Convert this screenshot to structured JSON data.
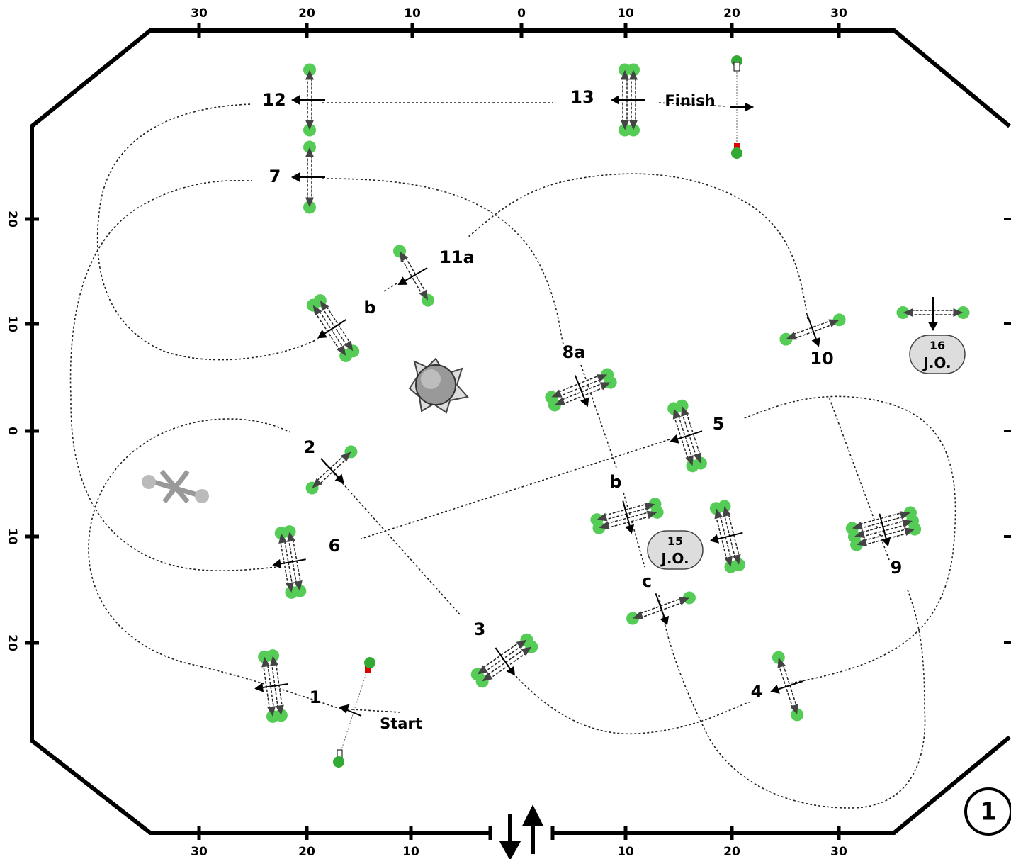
{
  "ruler": {
    "top": [
      "30",
      "20",
      "10",
      "0",
      "10",
      "20",
      "30"
    ],
    "bottom": [
      "30",
      "20",
      "10",
      "10",
      "20",
      "30"
    ],
    "left": [
      "20",
      "10",
      "0",
      "10",
      "20"
    ]
  },
  "labels": [
    "12",
    "13",
    "Finish",
    "7",
    "11a",
    "b",
    "8a",
    "10",
    "5",
    "2",
    "b",
    "6",
    "c",
    "9",
    "3",
    "1",
    "Start",
    "4"
  ],
  "jo": [
    {
      "number": "15",
      "text": "J.O."
    },
    {
      "number": "16",
      "text": "J.O."
    }
  ],
  "page_number": "1"
}
